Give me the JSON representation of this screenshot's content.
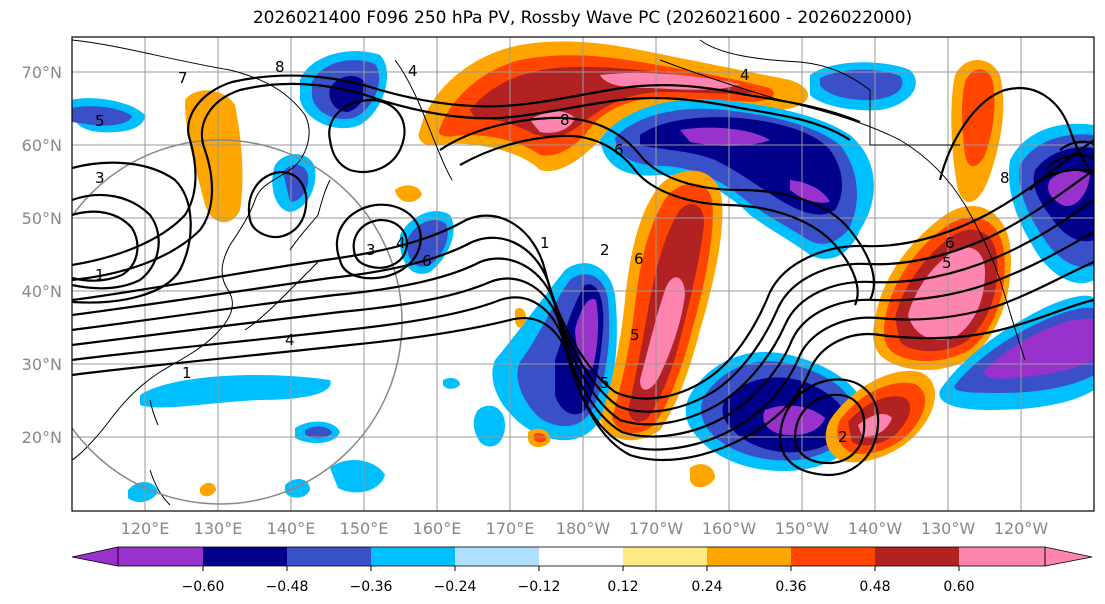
{
  "title": "2026021400 F096 250 hPa PV, Rossby Wave PC (2026021600 - 2026022000)",
  "lat_labels": [
    "70°N",
    "60°N",
    "50°N",
    "40°N",
    "30°N",
    "20°N"
  ],
  "lon_labels": [
    "120°E",
    "130°E",
    "140°E",
    "150°E",
    "160°E",
    "170°E",
    "180°W",
    "170°W",
    "160°W",
    "150°W",
    "140°W",
    "130°W",
    "120°W"
  ],
  "colorbar": {
    "ticks": [
      "−0.60",
      "−0.48",
      "−0.36",
      "−0.24",
      "−0.12",
      "0.12",
      "0.24",
      "0.36",
      "0.48",
      "0.60"
    ],
    "colors": [
      "#9932cc",
      "#00008b",
      "#3a50c8",
      "#00bfff",
      "#b0e0ff",
      "#ffffff",
      "#ffe985",
      "#ffa500",
      "#ff4500",
      "#b22222",
      "#ff85b0"
    ]
  },
  "contour_labels": [
    "1",
    "2",
    "3",
    "4",
    "5",
    "6",
    "7",
    "8"
  ],
  "colors": {
    "purple": "#9932cc",
    "navy": "#00008b",
    "royal": "#3a50c8",
    "sky": "#00bfff",
    "pale_blue": "#b0e0ff",
    "pale_yellow": "#ffe985",
    "orange": "#ffa500",
    "red_orange": "#ff4500",
    "firebrick": "#b22222",
    "pink": "#ff85b0"
  }
}
